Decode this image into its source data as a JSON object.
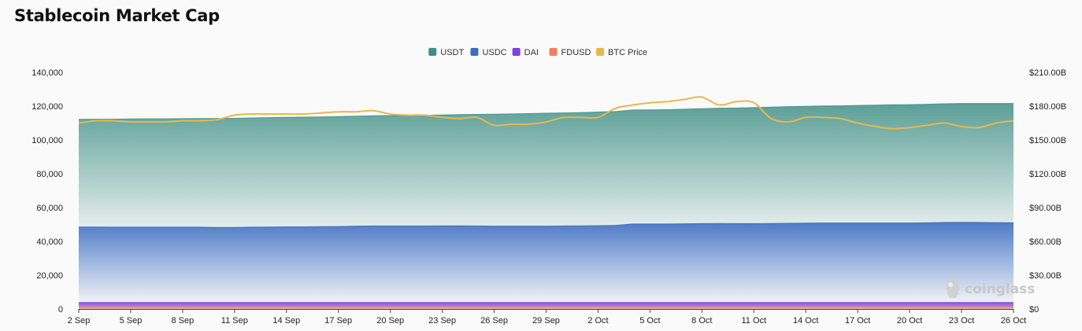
{
  "page": {
    "title": "Stablecoin Market Cap"
  },
  "watermark": {
    "text": "coinglass"
  },
  "colors": {
    "USDT": "#3f8f86",
    "USDC": "#3b6cc2",
    "DAI": "#7b3fe4",
    "FDUSD": "#f08060",
    "BTC Price": "#e8b84a"
  },
  "chart_data": {
    "type": "area",
    "title": "Stablecoin Market Cap",
    "legend_position": "top-center",
    "categories": [
      "2 Sep",
      "3 Sep",
      "4 Sep",
      "5 Sep",
      "6 Sep",
      "7 Sep",
      "8 Sep",
      "9 Sep",
      "10 Sep",
      "11 Sep",
      "12 Sep",
      "13 Sep",
      "14 Sep",
      "15 Sep",
      "16 Sep",
      "17 Sep",
      "18 Sep",
      "19 Sep",
      "20 Sep",
      "21 Sep",
      "22 Sep",
      "23 Sep",
      "24 Sep",
      "25 Sep",
      "26 Sep",
      "27 Sep",
      "28 Sep",
      "29 Sep",
      "30 Sep",
      "1 Oct",
      "2 Oct",
      "3 Oct",
      "4 Oct",
      "5 Oct",
      "6 Oct",
      "7 Oct",
      "8 Oct",
      "9 Oct",
      "10 Oct",
      "11 Oct",
      "12 Oct",
      "13 Oct",
      "14 Oct",
      "15 Oct",
      "16 Oct",
      "17 Oct",
      "18 Oct",
      "19 Oct",
      "20 Oct",
      "21 Oct",
      "22 Oct",
      "23 Oct",
      "24 Oct",
      "25 Oct",
      "26 Oct"
    ],
    "x_tick_labels": [
      "2 Sep",
      "5 Sep",
      "8 Sep",
      "11 Sep",
      "14 Sep",
      "17 Sep",
      "20 Sep",
      "23 Sep",
      "26 Sep",
      "29 Sep",
      "2 Oct",
      "5 Oct",
      "8 Oct",
      "11 Oct",
      "14 Oct",
      "17 Oct",
      "20 Oct",
      "23 Oct",
      "26 Oct"
    ],
    "y_left": {
      "min": 0,
      "max": 140000,
      "ticks": [
        "0",
        "20,000",
        "40,000",
        "60,000",
        "80,000",
        "100,000",
        "120,000",
        "140,000"
      ]
    },
    "y_right": {
      "min": 0,
      "max": 210,
      "ticks": [
        "$0",
        "$30.00B",
        "$60.00B",
        "$90.00B",
        "$120.00B",
        "$150.00B",
        "$180.00B",
        "$210.00B"
      ]
    },
    "grid": false,
    "series": [
      {
        "name": "USDT",
        "axis": "left",
        "stacked": true,
        "values": [
          63700,
          63800,
          63900,
          64000,
          64100,
          64100,
          64200,
          64300,
          64400,
          64500,
          64600,
          64700,
          64800,
          64900,
          64900,
          65000,
          65100,
          65200,
          65300,
          65400,
          65500,
          65600,
          65800,
          66000,
          66200,
          66400,
          66600,
          66800,
          66900,
          67000,
          67200,
          67300,
          67400,
          67500,
          67600,
          67800,
          68000,
          68200,
          68400,
          68600,
          68800,
          69000,
          69100,
          69200,
          69300,
          69500,
          69700,
          69900,
          70000,
          70100,
          70200,
          70300,
          70400,
          70500,
          70600
        ]
      },
      {
        "name": "USDC",
        "axis": "left",
        "stacked": true,
        "values": [
          44700,
          44700,
          44600,
          44600,
          44600,
          44600,
          44600,
          44600,
          44500,
          44500,
          44600,
          44700,
          44800,
          44800,
          44900,
          45000,
          45200,
          45300,
          45300,
          45300,
          45300,
          45400,
          45400,
          45300,
          45200,
          45200,
          45200,
          45200,
          45300,
          45400,
          45500,
          45700,
          46500,
          46500,
          46500,
          46600,
          46700,
          46800,
          46700,
          46700,
          46800,
          46900,
          47000,
          47100,
          47100,
          47100,
          47100,
          47100,
          47100,
          47200,
          47400,
          47500,
          47400,
          47300,
          47200
        ]
      },
      {
        "name": "DAI",
        "axis": "left",
        "stacked": true,
        "values": [
          2600,
          2600,
          2600,
          2600,
          2600,
          2600,
          2600,
          2600,
          2600,
          2600,
          2600,
          2600,
          2600,
          2600,
          2600,
          2600,
          2600,
          2600,
          2600,
          2600,
          2600,
          2600,
          2600,
          2600,
          2600,
          2600,
          2600,
          2600,
          2600,
          2600,
          2600,
          2600,
          2600,
          2600,
          2600,
          2600,
          2600,
          2600,
          2600,
          2600,
          2600,
          2600,
          2600,
          2600,
          2600,
          2600,
          2600,
          2600,
          2600,
          2600,
          2600,
          2600,
          2600,
          2600,
          2600
        ]
      },
      {
        "name": "FDUSD",
        "axis": "left",
        "stacked": true,
        "values": [
          1200,
          1200,
          1200,
          1200,
          1200,
          1200,
          1200,
          1200,
          1200,
          1200,
          1200,
          1200,
          1200,
          1200,
          1200,
          1200,
          1200,
          1200,
          1200,
          1200,
          1200,
          1200,
          1200,
          1200,
          1200,
          1200,
          1200,
          1200,
          1200,
          1200,
          1200,
          1200,
          1200,
          1200,
          1200,
          1200,
          1200,
          1200,
          1200,
          1200,
          1200,
          1200,
          1200,
          1200,
          1200,
          1200,
          1200,
          1200,
          1200,
          1200,
          1200,
          1200,
          1200,
          1200,
          1200
        ]
      },
      {
        "name": "BTC Price",
        "axis": "right",
        "stacked": false,
        "values": [
          165,
          167,
          167,
          166,
          166,
          166,
          167,
          167,
          168,
          172,
          173,
          173,
          173,
          173,
          174,
          175,
          175,
          176,
          173,
          172,
          172,
          170,
          169,
          170,
          163,
          164,
          164,
          166,
          170,
          170,
          170,
          178,
          181,
          183,
          184,
          186,
          188,
          181,
          184,
          183,
          169,
          166,
          170,
          170,
          169,
          165,
          162,
          160,
          161,
          163,
          165,
          162,
          161,
          165,
          167
        ]
      }
    ]
  }
}
